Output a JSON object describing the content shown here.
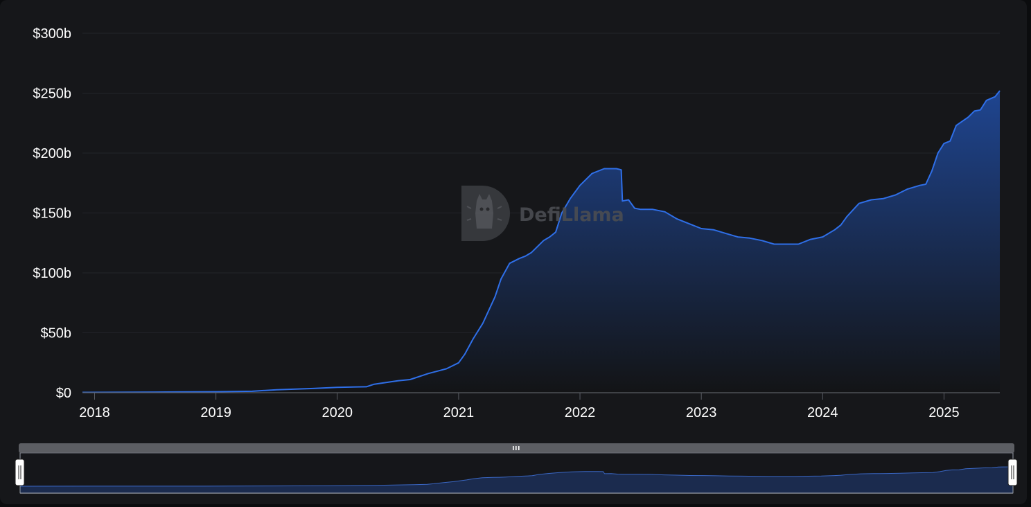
{
  "watermark": {
    "text": "DefiLlama",
    "logo": "llama-logo-icon"
  },
  "colors": {
    "background": "#16171a",
    "line": "#2f6fe8",
    "area_top": "#1f4590",
    "area_bottom": "#131416",
    "grid": "#22242a",
    "navigator_fill": "#1b2b4e",
    "navigator_line": "#3a67c4"
  },
  "chart_data": {
    "type": "area",
    "title": "",
    "xlabel": "",
    "ylabel": "",
    "grid": true,
    "legend": "none",
    "ylim": [
      0,
      300
    ],
    "y_unit": "billions USD",
    "y_ticks": [
      {
        "value": 0,
        "label": "$0"
      },
      {
        "value": 50,
        "label": "$50b"
      },
      {
        "value": 100,
        "label": "$100b"
      },
      {
        "value": 150,
        "label": "$150b"
      },
      {
        "value": 200,
        "label": "$200b"
      },
      {
        "value": 250,
        "label": "$250b"
      },
      {
        "value": 300,
        "label": "$300b"
      }
    ],
    "xlim": [
      2017.9,
      2025.46
    ],
    "x_ticks": [
      {
        "value": 2018,
        "label": "2018"
      },
      {
        "value": 2019,
        "label": "2019"
      },
      {
        "value": 2020,
        "label": "2020"
      },
      {
        "value": 2021,
        "label": "2021"
      },
      {
        "value": 2022,
        "label": "2022"
      },
      {
        "value": 2023,
        "label": "2023"
      },
      {
        "value": 2024,
        "label": "2024"
      },
      {
        "value": 2025,
        "label": "2025"
      }
    ],
    "series": [
      {
        "x": [
          2017.9,
          2018.5,
          2019.0,
          2019.3,
          2019.5,
          2019.8,
          2020.0,
          2020.24,
          2020.3,
          2020.5,
          2020.6,
          2020.75,
          2020.9,
          2021.0,
          2021.05,
          2021.12,
          2021.2,
          2021.3,
          2021.35,
          2021.42,
          2021.5,
          2021.55,
          2021.6,
          2021.7,
          2021.75,
          2021.8,
          2021.85,
          2021.92,
          2022.0,
          2022.1,
          2022.2,
          2022.3,
          2022.34,
          2022.35,
          2022.4,
          2022.45,
          2022.5,
          2022.6,
          2022.7,
          2022.8,
          2022.9,
          2023.0,
          2023.1,
          2023.2,
          2023.3,
          2023.4,
          2023.5,
          2023.6,
          2023.7,
          2023.8,
          2023.9,
          2024.0,
          2024.1,
          2024.15,
          2024.2,
          2024.3,
          2024.4,
          2024.5,
          2024.6,
          2024.7,
          2024.8,
          2024.85,
          2024.9,
          2024.95,
          2025.0,
          2025.05,
          2025.1,
          2025.2,
          2025.25,
          2025.3,
          2025.35,
          2025.42,
          2025.46
        ],
        "y": [
          0.3,
          0.5,
          0.8,
          1.2,
          2.5,
          3.5,
          4.5,
          5,
          7,
          10,
          11,
          16,
          20,
          25,
          32,
          45,
          58,
          80,
          95,
          108,
          112,
          114,
          117,
          127,
          130,
          134,
          150,
          162,
          173,
          183,
          187,
          187,
          186,
          160,
          161,
          154,
          153,
          153,
          151,
          145,
          141,
          137,
          136,
          133,
          130,
          129,
          127,
          124,
          124,
          124,
          128,
          130,
          136,
          140,
          147,
          158,
          161,
          162,
          165,
          170,
          173,
          174,
          185,
          200,
          208,
          210,
          223,
          230,
          235,
          236,
          244,
          247,
          252
        ]
      }
    ]
  }
}
